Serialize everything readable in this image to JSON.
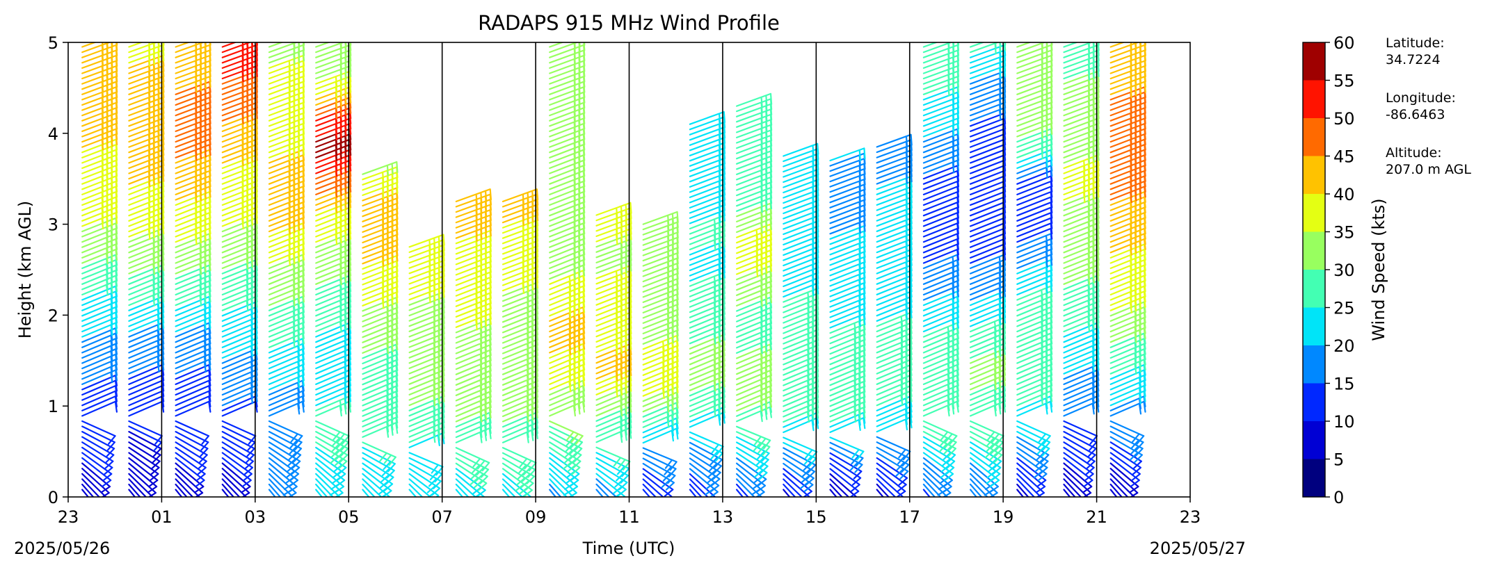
{
  "chart_data": {
    "type": "wind barb time-height profile",
    "title": "RADAPS 915 MHz Wind Profile",
    "xlabel": "Time (UTC)",
    "ylabel": "Height (km AGL)",
    "x_tick_labels": [
      "23",
      "01",
      "03",
      "05",
      "07",
      "09",
      "11",
      "13",
      "15",
      "17",
      "19",
      "21",
      "23"
    ],
    "x_tick_hours": [
      23,
      25,
      27,
      29,
      31,
      33,
      35,
      37,
      39,
      41,
      43,
      45,
      47
    ],
    "xlim_hours": [
      23,
      47
    ],
    "date_start": "2025/05/26",
    "date_end": "2025/05/27",
    "y_tick_labels": [
      "0",
      "1",
      "2",
      "3",
      "4",
      "5"
    ],
    "ylim": [
      0,
      5
    ],
    "hour_separators_at": [
      25,
      27,
      29,
      31,
      33,
      35,
      37,
      39,
      41,
      43,
      45
    ],
    "colorbar": {
      "label": "Wind Speed (kts)",
      "ticks": [
        "0",
        "5",
        "10",
        "15",
        "20",
        "25",
        "30",
        "35",
        "40",
        "45",
        "50",
        "55",
        "60"
      ],
      "bins": [
        0,
        5,
        10,
        15,
        20,
        25,
        30,
        35,
        40,
        45,
        50,
        55,
        60
      ],
      "colors": [
        "#00007f",
        "#0000d4",
        "#0028ff",
        "#0088ff",
        "#00e4f8",
        "#43ffb3",
        "#98ff5f",
        "#e4ff13",
        "#ffc200",
        "#ff6a00",
        "#ff1300",
        "#9f0000"
      ]
    },
    "profile_times_hours": [
      23.3,
      24.3,
      25.3,
      26.3,
      27.3,
      28.3,
      29.3,
      30.3,
      31.3,
      32.3,
      33.3,
      34.3,
      35.3,
      36.3,
      37.3,
      38.3,
      39.3,
      40.3,
      41.3,
      42.3,
      43.3,
      44.3,
      45.3
    ],
    "profile_top_km": [
      4.95,
      4.95,
      4.95,
      4.95,
      4.95,
      4.95,
      3.55,
      2.75,
      3.25,
      3.25,
      4.95,
      3.1,
      3.0,
      4.1,
      4.3,
      3.75,
      3.7,
      3.85,
      4.95,
      4.95,
      4.95,
      4.95,
      4.95
    ],
    "profile_speeds_kts": [
      [
        8,
        10,
        12,
        14,
        18,
        22,
        26,
        32,
        36,
        38,
        40,
        44,
        44,
        40
      ],
      [
        6,
        8,
        10,
        14,
        16,
        22,
        28,
        34,
        36,
        40,
        44,
        44,
        42,
        38
      ],
      [
        8,
        10,
        12,
        14,
        16,
        22,
        28,
        34,
        38,
        42,
        46,
        48,
        44,
        42
      ],
      [
        8,
        10,
        14,
        16,
        20,
        24,
        28,
        32,
        36,
        38,
        42,
        46,
        50,
        52
      ],
      [
        18,
        18,
        18,
        20,
        24,
        28,
        32,
        36,
        42,
        44,
        38,
        36,
        36,
        34
      ],
      [
        20,
        24,
        26,
        24,
        22,
        26,
        30,
        34,
        38,
        48,
        58,
        50,
        34,
        32
      ],
      [
        22,
        24,
        26,
        28,
        30,
        34,
        38,
        42,
        44,
        34
      ],
      [
        20,
        22,
        28,
        32,
        34,
        34,
        36,
        38
      ],
      [
        20,
        26,
        30,
        32,
        34,
        36,
        38,
        40,
        42
      ],
      [
        20,
        28,
        30,
        32,
        32,
        34,
        36,
        38,
        44
      ],
      [
        18,
        24,
        32,
        38,
        42,
        36,
        32,
        30,
        32,
        34,
        32,
        30
      ],
      [
        16,
        24,
        30,
        42,
        38,
        36,
        34,
        38
      ],
      [
        10,
        16,
        28,
        40,
        34,
        32,
        30,
        30
      ],
      [
        12,
        16,
        24,
        32,
        30,
        28,
        24,
        26,
        22,
        20,
        22
      ],
      [
        12,
        18,
        28,
        34,
        30,
        28,
        34,
        38,
        30,
        28,
        30,
        28
      ],
      [
        8,
        16,
        26,
        30,
        28,
        26,
        22,
        20,
        22,
        24
      ],
      [
        6,
        12,
        26,
        28,
        26,
        24,
        22,
        20,
        18,
        20
      ],
      [
        8,
        14,
        24,
        28,
        26,
        24,
        22,
        20,
        20,
        18
      ],
      [
        14,
        18,
        26,
        30,
        28,
        24,
        18,
        14,
        12,
        14,
        18,
        24,
        26,
        28
      ],
      [
        16,
        20,
        28,
        30,
        30,
        24,
        18,
        14,
        12,
        10,
        12,
        16,
        20,
        26
      ],
      [
        6,
        14,
        22,
        28,
        26,
        28,
        24,
        16,
        12,
        14,
        28,
        34,
        32,
        30
      ],
      [
        4,
        10,
        14,
        18,
        22,
        26,
        30,
        32,
        34,
        36,
        34,
        32,
        30,
        28
      ],
      [
        4,
        10,
        18,
        22,
        28,
        34,
        38,
        40,
        44,
        46,
        50,
        46,
        44,
        42
      ]
    ],
    "info": {
      "latitude_label": "Latitude:",
      "latitude_value": "34.7224",
      "longitude_label": "Longitude:",
      "longitude_value": "-86.6463",
      "altitude_label": "Altitude:",
      "altitude_value": "207.0 m AGL"
    }
  }
}
